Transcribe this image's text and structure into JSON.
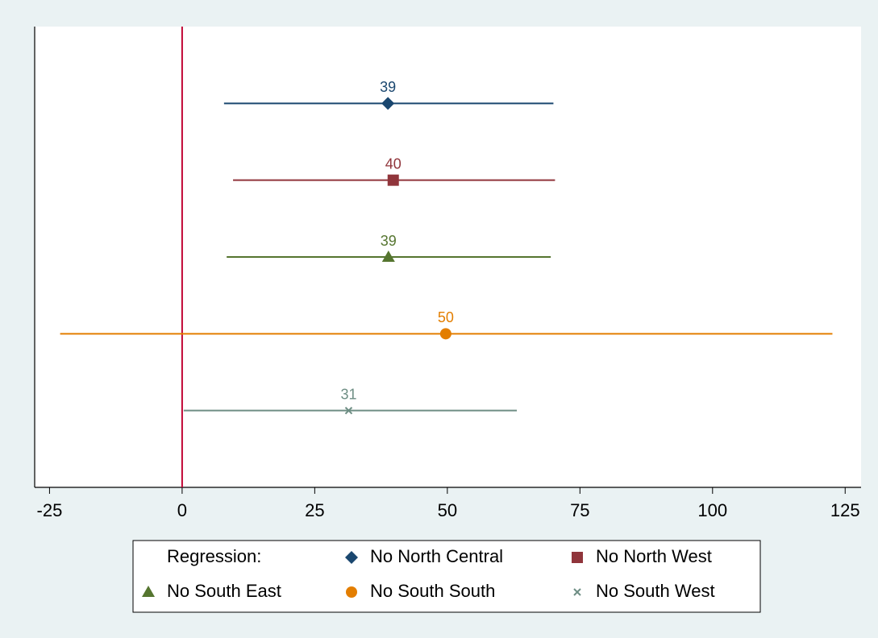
{
  "chart_data": {
    "type": "coefplot",
    "xlim": [
      -27.8,
      128
    ],
    "xticks": [
      -25,
      0,
      25,
      50,
      75,
      100,
      125
    ],
    "xline": 0,
    "xline_color": "#c10534",
    "legend_title": "Regression:",
    "legend_position": "bottom",
    "series": [
      {
        "name": "No North Central",
        "color": "#1a476f",
        "marker": "diamond",
        "values": [
          38.8
        ],
        "value_labels": [
          "39"
        ],
        "low": [
          7.9
        ],
        "high": [
          70.0
        ]
      },
      {
        "name": "No North West",
        "color": "#90353b",
        "marker": "square",
        "values": [
          39.8
        ],
        "value_labels": [
          "40"
        ],
        "low": [
          9.6
        ],
        "high": [
          70.3
        ]
      },
      {
        "name": "No South East",
        "color": "#55752f",
        "marker": "triangle",
        "values": [
          38.9
        ],
        "value_labels": [
          "39"
        ],
        "low": [
          8.4
        ],
        "high": [
          69.5
        ]
      },
      {
        "name": "No South South",
        "color": "#e37e00",
        "marker": "circle",
        "values": [
          49.7
        ],
        "value_labels": [
          "50"
        ],
        "low": [
          -23.0
        ],
        "high": [
          122.6
        ]
      },
      {
        "name": "No South West",
        "color": "#6e8e84",
        "marker": "x",
        "values": [
          31.4
        ],
        "value_labels": [
          "31"
        ],
        "low": [
          0.3
        ],
        "high": [
          63.1
        ]
      }
    ]
  }
}
